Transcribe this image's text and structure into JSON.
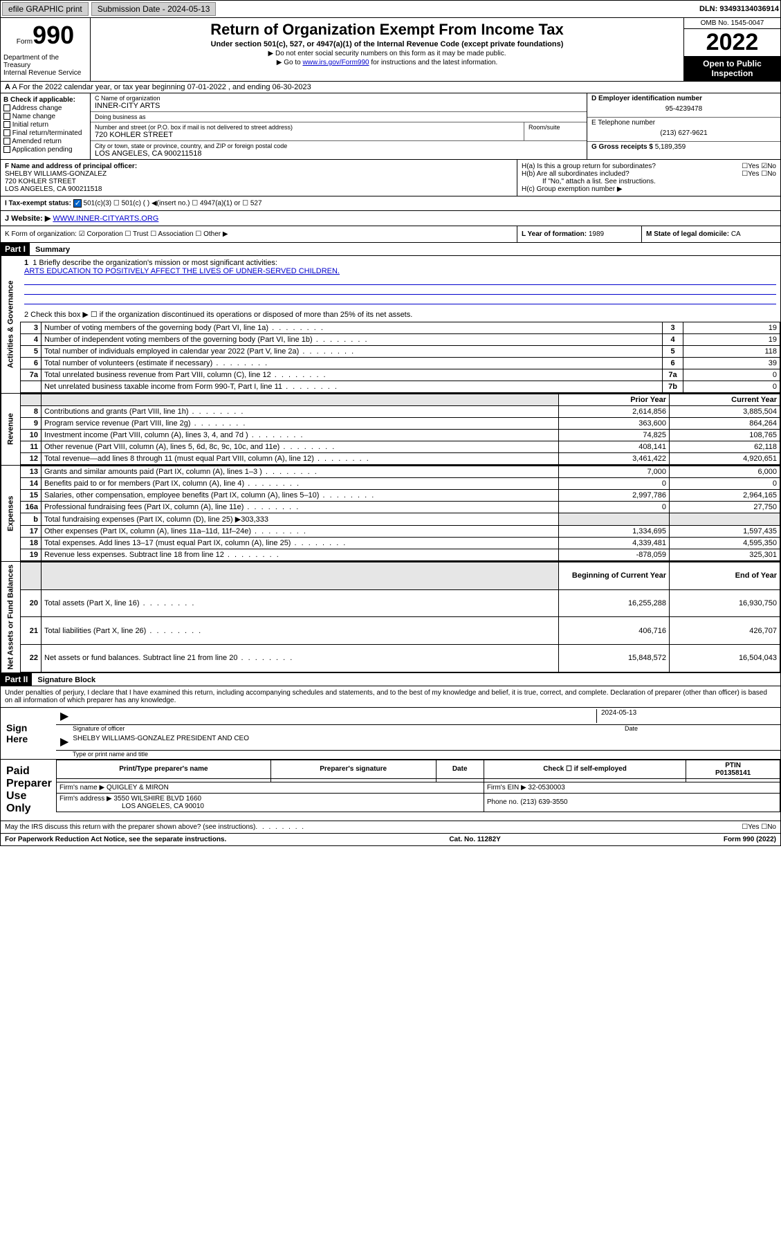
{
  "topbar": {
    "efile": "efile GRAPHIC print",
    "submission_label": "Submission Date - 2024-05-13",
    "dln": "DLN: 93493134036914"
  },
  "header": {
    "form_word": "Form",
    "form_num": "990",
    "title": "Return of Organization Exempt From Income Tax",
    "sub": "Under section 501(c), 527, or 4947(a)(1) of the Internal Revenue Code (except private foundations)",
    "note1": "▶ Do not enter social security numbers on this form as it may be made public.",
    "note2_pre": "▶ Go to ",
    "note2_link": "www.irs.gov/Form990",
    "note2_post": " for instructions and the latest information.",
    "dept": "Department of the Treasury\nInternal Revenue Service",
    "omb": "OMB No. 1545-0047",
    "year": "2022",
    "inspect": "Open to Public Inspection"
  },
  "row_a": "A For the 2022 calendar year, or tax year beginning 07-01-2022  , and ending 06-30-2023",
  "col_b": {
    "label": "B Check if applicable:",
    "items": [
      "Address change",
      "Name change",
      "Initial return",
      "Final return/terminated",
      "Amended return",
      "Application pending"
    ]
  },
  "col_c": {
    "name_lbl": "C Name of organization",
    "name": "INNER-CITY ARTS",
    "dba_lbl": "Doing business as",
    "dba": "",
    "street_lbl": "Number and street (or P.O. box if mail is not delivered to street address)",
    "room_lbl": "Room/suite",
    "street": "720 KOHLER STREET",
    "city_lbl": "City or town, state or province, country, and ZIP or foreign postal code",
    "city": "LOS ANGELES, CA  900211518"
  },
  "col_de": {
    "d_lbl": "D Employer identification number",
    "d_val": "95-4239478",
    "e_lbl": "E Telephone number",
    "e_val": "(213) 627-9621",
    "g_lbl": "G Gross receipts $",
    "g_val": "5,189,359"
  },
  "col_f": {
    "lbl": "F Name and address of principal officer:",
    "name": "SHELBY WILLIAMS-GONZALEZ",
    "street": "720 KOHLER STREET",
    "city": "LOS ANGELES, CA  900211518"
  },
  "col_h": {
    "ha": "H(a)  Is this a group return for subordinates?",
    "ha_ans": "☐Yes ☑No",
    "hb": "H(b)  Are all subordinates included?",
    "hb_ans": "☐Yes ☐No",
    "hb_note": "If \"No,\" attach a list. See instructions.",
    "hc": "H(c)  Group exemption number ▶"
  },
  "row_i": {
    "lbl": "I   Tax-exempt status:",
    "opts": "501(c)(3)     ☐ 501(c) (  ) ◀(insert no.)     ☐ 4947(a)(1) or   ☐ 527"
  },
  "row_j": {
    "lbl": "J   Website: ▶",
    "val": "WWW.INNER-CITYARTS.ORG"
  },
  "row_klm": {
    "k": "K Form of organization:  ☑ Corporation  ☐ Trust  ☐ Association  ☐ Other ▶",
    "l_lbl": "L Year of formation:",
    "l_val": "1989",
    "m_lbl": "M State of legal domicile:",
    "m_val": "CA"
  },
  "part1": {
    "hdr": "Part I",
    "title": "Summary",
    "side_gov": "Activities & Governance",
    "side_rev": "Revenue",
    "side_exp": "Expenses",
    "side_net": "Net Assets or Fund Balances",
    "line1_lbl": "1  Briefly describe the organization's mission or most significant activities:",
    "line1_val": "ARTS EDUCATION TO POSITIVELY AFFECT THE LIVES OF UDNER-SERVED CHILDREN.",
    "line2": "2   Check this box ▶ ☐  if the organization discontinued its operations or disposed of more than 25% of its net assets.",
    "gov_rows": [
      {
        "n": "3",
        "d": "Number of voting members of the governing body (Part VI, line 1a)",
        "b": "3",
        "v": "19"
      },
      {
        "n": "4",
        "d": "Number of independent voting members of the governing body (Part VI, line 1b)",
        "b": "4",
        "v": "19"
      },
      {
        "n": "5",
        "d": "Total number of individuals employed in calendar year 2022 (Part V, line 2a)",
        "b": "5",
        "v": "118"
      },
      {
        "n": "6",
        "d": "Total number of volunteers (estimate if necessary)",
        "b": "6",
        "v": "39"
      },
      {
        "n": "7a",
        "d": "Total unrelated business revenue from Part VIII, column (C), line 12",
        "b": "7a",
        "v": "0"
      },
      {
        "n": "",
        "d": "Net unrelated business taxable income from Form 990-T, Part I, line 11",
        "b": "7b",
        "v": "0"
      }
    ],
    "col_hdr_prior": "Prior Year",
    "col_hdr_curr": "Current Year",
    "rev_rows": [
      {
        "n": "8",
        "d": "Contributions and grants (Part VIII, line 1h)",
        "p": "2,614,856",
        "c": "3,885,504"
      },
      {
        "n": "9",
        "d": "Program service revenue (Part VIII, line 2g)",
        "p": "363,600",
        "c": "864,264"
      },
      {
        "n": "10",
        "d": "Investment income (Part VIII, column (A), lines 3, 4, and 7d )",
        "p": "74,825",
        "c": "108,765"
      },
      {
        "n": "11",
        "d": "Other revenue (Part VIII, column (A), lines 5, 6d, 8c, 9c, 10c, and 11e)",
        "p": "408,141",
        "c": "62,118"
      },
      {
        "n": "12",
        "d": "Total revenue—add lines 8 through 11 (must equal Part VIII, column (A), line 12)",
        "p": "3,461,422",
        "c": "4,920,651"
      }
    ],
    "exp_rows": [
      {
        "n": "13",
        "d": "Grants and similar amounts paid (Part IX, column (A), lines 1–3 )",
        "p": "7,000",
        "c": "6,000"
      },
      {
        "n": "14",
        "d": "Benefits paid to or for members (Part IX, column (A), line 4)",
        "p": "0",
        "c": "0"
      },
      {
        "n": "15",
        "d": "Salaries, other compensation, employee benefits (Part IX, column (A), lines 5–10)",
        "p": "2,997,786",
        "c": "2,964,165"
      },
      {
        "n": "16a",
        "d": "Professional fundraising fees (Part IX, column (A), line 11e)",
        "p": "0",
        "c": "27,750"
      },
      {
        "n": "b",
        "d": "Total fundraising expenses (Part IX, column (D), line 25) ▶303,333",
        "p": "",
        "c": ""
      },
      {
        "n": "17",
        "d": "Other expenses (Part IX, column (A), lines 11a–11d, 11f–24e)",
        "p": "1,334,695",
        "c": "1,597,435"
      },
      {
        "n": "18",
        "d": "Total expenses. Add lines 13–17 (must equal Part IX, column (A), line 25)",
        "p": "4,339,481",
        "c": "4,595,350"
      },
      {
        "n": "19",
        "d": "Revenue less expenses. Subtract line 18 from line 12",
        "p": "-878,059",
        "c": "325,301"
      }
    ],
    "col_hdr_beg": "Beginning of Current Year",
    "col_hdr_end": "End of Year",
    "net_rows": [
      {
        "n": "20",
        "d": "Total assets (Part X, line 16)",
        "p": "16,255,288",
        "c": "16,930,750"
      },
      {
        "n": "21",
        "d": "Total liabilities (Part X, line 26)",
        "p": "406,716",
        "c": "426,707"
      },
      {
        "n": "22",
        "d": "Net assets or fund balances. Subtract line 21 from line 20",
        "p": "15,848,572",
        "c": "16,504,043"
      }
    ]
  },
  "part2": {
    "hdr": "Part II",
    "title": "Signature Block",
    "intro": "Under penalties of perjury, I declare that I have examined this return, including accompanying schedules and statements, and to the best of my knowledge and belief, it is true, correct, and complete. Declaration of preparer (other than officer) is based on all information of which preparer has any knowledge.",
    "sign_here": "Sign Here",
    "sig_officer_lbl": "Signature of officer",
    "date_lbl": "Date",
    "sig_date": "2024-05-13",
    "officer_name": "SHELBY WILLIAMS-GONZALEZ  PRESIDENT AND CEO",
    "officer_sub": "Type or print name and title",
    "paid_prep": "Paid Preparer Use Only",
    "prep_hdrs": [
      "Print/Type preparer's name",
      "Preparer's signature",
      "Date",
      "Check ☐ if self-employed",
      "PTIN\nP01358141"
    ],
    "firm_name_lbl": "Firm's name    ▶",
    "firm_name": "QUIGLEY & MIRON",
    "firm_ein_lbl": "Firm's EIN ▶",
    "firm_ein": "32-0530003",
    "firm_addr_lbl": "Firm's address ▶",
    "firm_addr1": "3550 WILSHIRE BLVD 1660",
    "firm_addr2": "LOS ANGELES, CA  90010",
    "phone_lbl": "Phone no.",
    "phone": "(213) 639-3550",
    "discuss": "May the IRS discuss this return with the preparer shown above? (see instructions)",
    "discuss_ans": "☐Yes  ☐No"
  },
  "footer": {
    "left": "For Paperwork Reduction Act Notice, see the separate instructions.",
    "mid": "Cat. No. 11282Y",
    "right": "Form 990 (2022)"
  }
}
